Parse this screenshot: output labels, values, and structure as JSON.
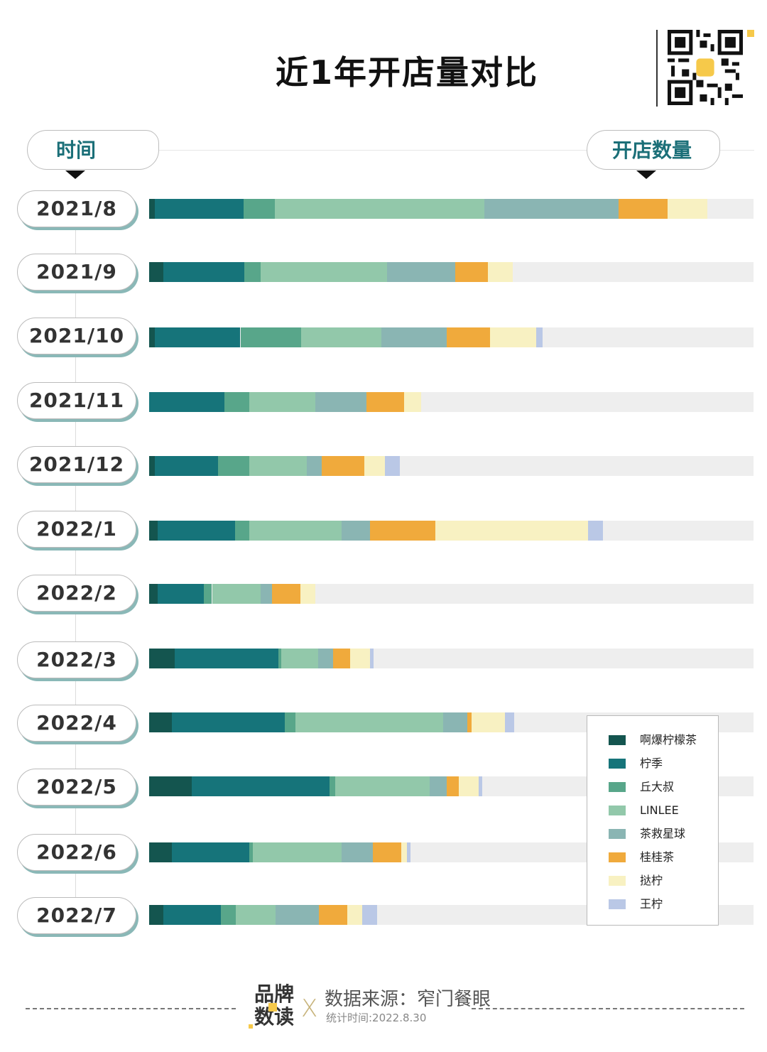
{
  "title": "近1年开店量对比",
  "headers": {
    "time_label": "时间",
    "count_label": "开店数量"
  },
  "footer": {
    "brand_line1": "品牌",
    "brand_line2": "数读",
    "cross": "X",
    "source": "数据来源：窄门餐眼",
    "stat_time": "统计时间:2022.8.30"
  },
  "icons": {
    "qr": "qr-code-icon"
  },
  "chart_data": {
    "type": "bar",
    "orientation": "horizontal",
    "stacked": true,
    "title": "近1年开店量对比",
    "xlabel": "开店数量",
    "ylabel": "时间",
    "xlim": [
      0,
      100
    ],
    "value_note": "relative units (no axis ticks shown); full track = 100",
    "grid": false,
    "legend_position": "bottom-right",
    "categories": [
      "2021/8",
      "2021/9",
      "2021/10",
      "2021/11",
      "2021/12",
      "2022/1",
      "2022/2",
      "2022/3",
      "2022/4",
      "2022/5",
      "2022/6",
      "2022/7"
    ],
    "series": [
      {
        "name": "啊爆柠檬茶",
        "color": "#14554f",
        "values": [
          0.9,
          2.4,
          0.9,
          0,
          0.9,
          1.4,
          1.4,
          4.2,
          3.8,
          7.1,
          3.8,
          2.4
        ]
      },
      {
        "name": "柠季",
        "color": "#16747a",
        "values": [
          14.7,
          13.3,
          14.2,
          12.4,
          10.5,
          12.8,
          7.6,
          17.2,
          18.6,
          22.8,
          12.8,
          9.5
        ]
      },
      {
        "name": "丘大叔",
        "color": "#58a68a",
        "values": [
          5.2,
          2.8,
          10.0,
          4.2,
          5.2,
          2.4,
          1.4,
          0.4,
          1.8,
          0.9,
          0.5,
          2.4
        ]
      },
      {
        "name": "LINLEE",
        "color": "#92c8aa",
        "values": [
          34.7,
          20.9,
          13.3,
          10.9,
          9.5,
          15.2,
          8.0,
          6.2,
          24.4,
          15.6,
          14.7,
          6.6
        ]
      },
      {
        "name": "茶救星球",
        "color": "#8ab5b3",
        "values": [
          22.2,
          11.3,
          10.8,
          8.5,
          2.4,
          4.7,
          1.9,
          2.4,
          4.1,
          2.8,
          5.2,
          7.2
        ]
      },
      {
        "name": "桂桂茶",
        "color": "#f0aa3c",
        "values": [
          8.1,
          5.3,
          7.2,
          6.2,
          7.1,
          10.9,
          4.7,
          2.8,
          0.6,
          2.0,
          4.7,
          4.7
        ]
      },
      {
        "name": "挞柠",
        "color": "#f8f1c2",
        "values": [
          6.6,
          4.2,
          7.6,
          2.8,
          3.4,
          25.2,
          2.5,
          3.3,
          5.6,
          3.3,
          0.9,
          2.5
        ]
      },
      {
        "name": "王柠",
        "color": "#bac8e6",
        "values": [
          0,
          0,
          1.1,
          0,
          2.5,
          2.5,
          0,
          0.6,
          1.5,
          0.6,
          0.6,
          2.4
        ]
      }
    ]
  }
}
